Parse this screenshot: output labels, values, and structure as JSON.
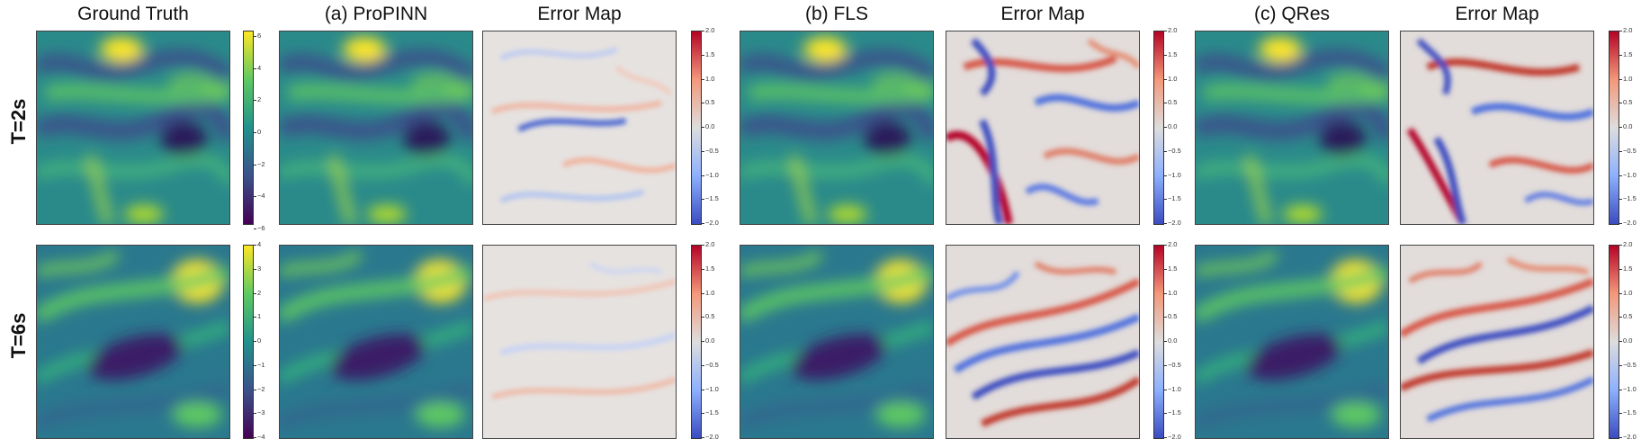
{
  "column_titles": [
    "Ground Truth",
    "(a) ProPINN",
    "Error Map",
    "(b) FLS",
    "Error Map",
    "(c) QRes",
    "Error Map"
  ],
  "row_labels": [
    "T=2s",
    "T=6s"
  ],
  "colorbars": {
    "gt_row1": [
      "6",
      "4",
      "2",
      "0",
      "−2",
      "−4",
      "−6"
    ],
    "gt_row2": [
      "4",
      "3",
      "2",
      "1",
      "0",
      "−1",
      "−2",
      "−3",
      "−4"
    ],
    "error": [
      "2.0",
      "1.5",
      "1.0",
      "0.5",
      "0.0",
      "−0.5",
      "−1.0",
      "−1.5",
      "−2.0"
    ]
  },
  "colors": {
    "viridis": [
      "#440154",
      "#3b528b",
      "#21918c",
      "#5ec962",
      "#fde725"
    ],
    "coolwarm": [
      "#3b4cc0",
      "#dddddd",
      "#b40426"
    ]
  }
}
